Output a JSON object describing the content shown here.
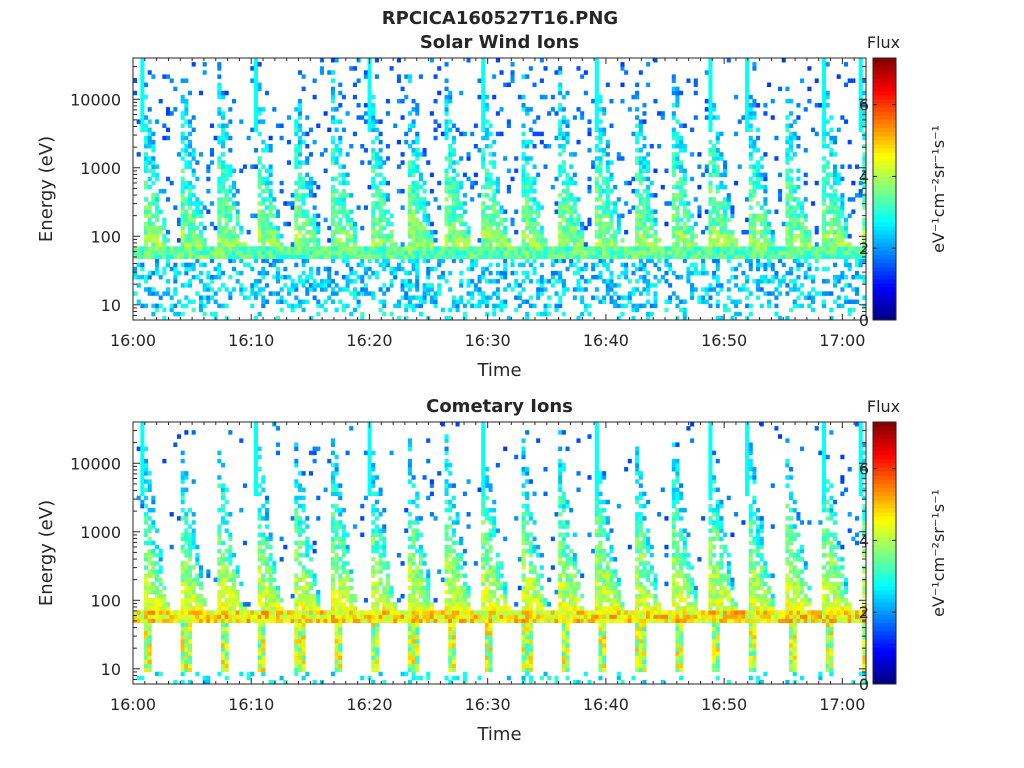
{
  "figure": {
    "title": "RPCICA160527T16.PNG"
  },
  "colors": {
    "colormap": "jet",
    "axis": "#262626",
    "background": "#ffffff"
  },
  "chart_data": [
    {
      "type": "heatmap",
      "title": "Solar Wind Ions",
      "xlabel": "Time",
      "ylabel": "Energy (eV)",
      "x_range": [
        "16:00",
        "17:02"
      ],
      "xticks": [
        "16:00",
        "16:10",
        "16:20",
        "16:30",
        "16:40",
        "16:50",
        "17:00"
      ],
      "y_scale": "log",
      "ylim": [
        6,
        40000
      ],
      "yticks": [
        "10",
        "100",
        "1000",
        "10000"
      ],
      "colorbar": {
        "label": "Flux",
        "units": "eV⁻¹cm⁻²sr⁻¹s⁻¹",
        "range": [
          0,
          7.3
        ],
        "ticks": [
          "0",
          "2",
          "4",
          "6"
        ]
      },
      "features": {
        "sweep_period_min": 3.2,
        "first_sweep_min": 0.8,
        "ion_band_energy_eV": [
          45,
          75
        ],
        "ion_band_flux": 3.5,
        "sweep_peak_flux": 3.0,
        "low_energy_flux": 2.5
      }
    },
    {
      "type": "heatmap",
      "title": "Cometary Ions",
      "xlabel": "Time",
      "ylabel": "Energy (eV)",
      "x_range": [
        "16:00",
        "17:02"
      ],
      "xticks": [
        "16:00",
        "16:10",
        "16:20",
        "16:30",
        "16:40",
        "16:50",
        "17:00"
      ],
      "y_scale": "log",
      "ylim": [
        6,
        40000
      ],
      "yticks": [
        "10",
        "100",
        "1000",
        "10000"
      ],
      "colorbar": {
        "label": "Flux",
        "units": "eV⁻¹cm⁻²sr⁻¹s⁻¹",
        "range": [
          0,
          7.3
        ],
        "ticks": [
          "0",
          "2",
          "4",
          "6"
        ]
      },
      "features": {
        "sweep_period_min": 3.2,
        "first_sweep_min": 0.8,
        "ion_band_energy_eV": [
          45,
          75
        ],
        "ion_band_flux": 4.8,
        "sweep_peak_flux": 4.0,
        "low_energy_flux": 4.3
      }
    }
  ]
}
